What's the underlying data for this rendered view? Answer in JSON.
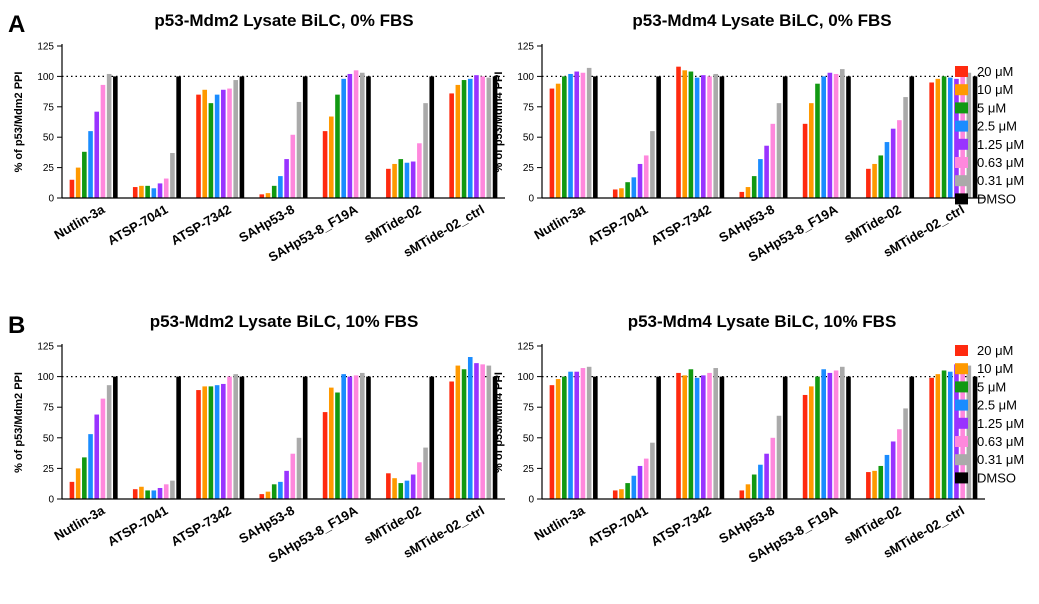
{
  "panels": [
    {
      "letter": "A"
    },
    {
      "letter": "B"
    }
  ],
  "legend": [
    {
      "label": "20 μM",
      "color": "#ff2a0f"
    },
    {
      "label": "10 μM",
      "color": "#ff9900"
    },
    {
      "label": "5 μM",
      "color": "#119911"
    },
    {
      "label": "2.5 μM",
      "color": "#1a8cff"
    },
    {
      "label": "1.25 μM",
      "color": "#9933ff"
    },
    {
      "label": "0.63 μM",
      "color": "#ff88dd"
    },
    {
      "label": "0.31 μM",
      "color": "#aaaaaa"
    },
    {
      "label": "DMSO",
      "color": "#000000"
    }
  ],
  "chart_data": [
    {
      "type": "bar",
      "title": "p53-Mdm2 Lysate BiLC, 0% FBS",
      "ylabel": "% of p53/Mdm2 PPI",
      "ylim": [
        0,
        125
      ],
      "yticks": [
        "0",
        "25",
        "50",
        "75",
        "100",
        "125"
      ],
      "reference_line": 100,
      "categories": [
        "Nutlin-3a",
        "ATSP-7041",
        "ATSP-7342",
        "SAHp53-8",
        "SAHp53-8_F19A",
        "sMTide-02",
        "sMTide-02_ctrl"
      ],
      "series": [
        {
          "name": "20 μM",
          "values": [
            15,
            9,
            85,
            3,
            55,
            24,
            86
          ]
        },
        {
          "name": "10 μM",
          "values": [
            25,
            10,
            89,
            4,
            67,
            28,
            93
          ]
        },
        {
          "name": "5 μM",
          "values": [
            38,
            10,
            78,
            10,
            85,
            32,
            97
          ]
        },
        {
          "name": "2.5 μM",
          "values": [
            55,
            8,
            85,
            18,
            98,
            29,
            98
          ]
        },
        {
          "name": "1.25 μM",
          "values": [
            71,
            12,
            89,
            32,
            102,
            30,
            101
          ]
        },
        {
          "name": "0.63 μM",
          "values": [
            93,
            16,
            90,
            52,
            105,
            45,
            100
          ]
        },
        {
          "name": "0.31 μM",
          "values": [
            102,
            37,
            97,
            79,
            103,
            78,
            99
          ]
        },
        {
          "name": "DMSO",
          "values": [
            100,
            100,
            100,
            100,
            100,
            100,
            100
          ]
        }
      ]
    },
    {
      "type": "bar",
      "title": "p53-Mdm4 Lysate BiLC, 0% FBS",
      "ylabel": "% of p53/Mdm4 PPI",
      "ylim": [
        0,
        125
      ],
      "yticks": [
        "0",
        "25",
        "50",
        "75",
        "100",
        "125"
      ],
      "reference_line": 100,
      "categories": [
        "Nutlin-3a",
        "ATSP-7041",
        "ATSP-7342",
        "SAHp53-8",
        "SAHp53-8_F19A",
        "sMTide-02",
        "sMTide-02_ctrl"
      ],
      "series": [
        {
          "name": "20 μM",
          "values": [
            90,
            7,
            108,
            5,
            61,
            24,
            95
          ]
        },
        {
          "name": "10 μM",
          "values": [
            94,
            8,
            105,
            9,
            78,
            28,
            98
          ]
        },
        {
          "name": "5 μM",
          "values": [
            100,
            13,
            104,
            18,
            94,
            35,
            100
          ]
        },
        {
          "name": "2.5 μM",
          "values": [
            102,
            17,
            99,
            32,
            100,
            46,
            99
          ]
        },
        {
          "name": "1.25 μM",
          "values": [
            104,
            28,
            101,
            43,
            103,
            57,
            98
          ]
        },
        {
          "name": "0.63 μM",
          "values": [
            103,
            35,
            100,
            61,
            102,
            64,
            101
          ]
        },
        {
          "name": "0.31 μM",
          "values": [
            107,
            55,
            102,
            78,
            106,
            83,
            103
          ]
        },
        {
          "name": "DMSO",
          "values": [
            100,
            100,
            100,
            100,
            100,
            100,
            100
          ]
        }
      ]
    },
    {
      "type": "bar",
      "title": "p53-Mdm2 Lysate BiLC, 10% FBS",
      "ylabel": "% of p53/Mdm2 PPI",
      "ylim": [
        0,
        125
      ],
      "yticks": [
        "0",
        "25",
        "50",
        "75",
        "100",
        "125"
      ],
      "reference_line": 100,
      "categories": [
        "Nutlin-3a",
        "ATSP-7041",
        "ATSP-7342",
        "SAHp53-8",
        "SAHp53-8_F19A",
        "sMTide-02",
        "sMTide-02_ctrl"
      ],
      "series": [
        {
          "name": "20 μM",
          "values": [
            14,
            8,
            89,
            4,
            71,
            21,
            96
          ]
        },
        {
          "name": "10 μM",
          "values": [
            25,
            10,
            92,
            6,
            91,
            17,
            109
          ]
        },
        {
          "name": "5 μM",
          "values": [
            34,
            7,
            92,
            12,
            87,
            13,
            106
          ]
        },
        {
          "name": "2.5 μM",
          "values": [
            53,
            7,
            93,
            14,
            102,
            15,
            116
          ]
        },
        {
          "name": "1.25 μM",
          "values": [
            69,
            9,
            94,
            23,
            100,
            20,
            111
          ]
        },
        {
          "name": "0.63 μM",
          "values": [
            82,
            12,
            100,
            37,
            101,
            30,
            110
          ]
        },
        {
          "name": "0.31 μM",
          "values": [
            93,
            15,
            102,
            50,
            103,
            42,
            109
          ]
        },
        {
          "name": "DMSO",
          "values": [
            100,
            100,
            100,
            100,
            100,
            100,
            100
          ]
        }
      ]
    },
    {
      "type": "bar",
      "title": "p53-Mdm4 Lysate BiLC, 10% FBS",
      "ylabel": "% of p53/Mdm4 PPI",
      "ylim": [
        0,
        125
      ],
      "yticks": [
        "0",
        "25",
        "50",
        "75",
        "100",
        "125"
      ],
      "reference_line": 100,
      "categories": [
        "Nutlin-3a",
        "ATSP-7041",
        "ATSP-7342",
        "SAHp53-8",
        "SAHp53-8_F19A",
        "sMTide-02",
        "sMTide-02_ctrl"
      ],
      "series": [
        {
          "name": "20 μM",
          "values": [
            93,
            7,
            103,
            7,
            85,
            22,
            99
          ]
        },
        {
          "name": "10 μM",
          "values": [
            98,
            8,
            101,
            12,
            92,
            23,
            102
          ]
        },
        {
          "name": "5 μM",
          "values": [
            100,
            13,
            106,
            20,
            100,
            27,
            105
          ]
        },
        {
          "name": "2.5 μM",
          "values": [
            104,
            19,
            99,
            28,
            106,
            36,
            104
          ]
        },
        {
          "name": "1.25 μM",
          "values": [
            104,
            27,
            101,
            37,
            103,
            47,
            110
          ]
        },
        {
          "name": "0.63 μM",
          "values": [
            107,
            33,
            103,
            50,
            105,
            57,
            103
          ]
        },
        {
          "name": "0.31 μM",
          "values": [
            108,
            46,
            107,
            68,
            108,
            74,
            109
          ]
        },
        {
          "name": "DMSO",
          "values": [
            100,
            100,
            100,
            100,
            100,
            100,
            100
          ]
        }
      ]
    }
  ]
}
